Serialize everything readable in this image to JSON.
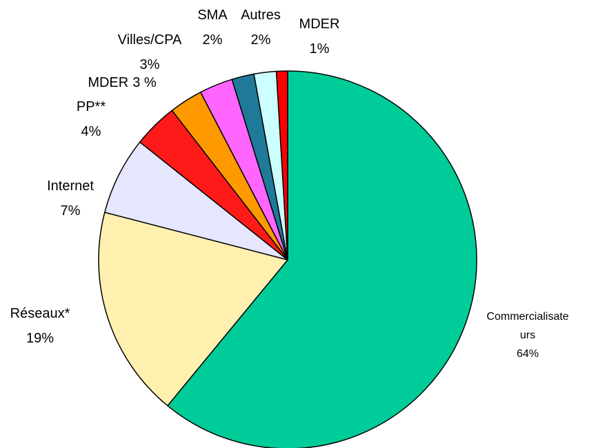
{
  "chart_data": {
    "type": "pie",
    "categories": [
      "Commercialisateurs",
      "Réseaux*",
      "Internet",
      "PP**",
      "MDER",
      "Villes/CPA",
      "SMA",
      "Autres",
      "MDER"
    ],
    "values": [
      64,
      19,
      7,
      4,
      3,
      3,
      2,
      2,
      1
    ],
    "value_labels": [
      "64%",
      "19%",
      "7%",
      "4%",
      "3 %",
      "3%",
      "2%",
      "2%",
      "1%"
    ],
    "colors": [
      "#00cc99",
      "#fff0b0",
      "#e6e6ff",
      "#ff1a1a",
      "#ff9900",
      "#ff66ff",
      "#1f7a99",
      "#ccffff",
      "#ff0000"
    ]
  }
}
